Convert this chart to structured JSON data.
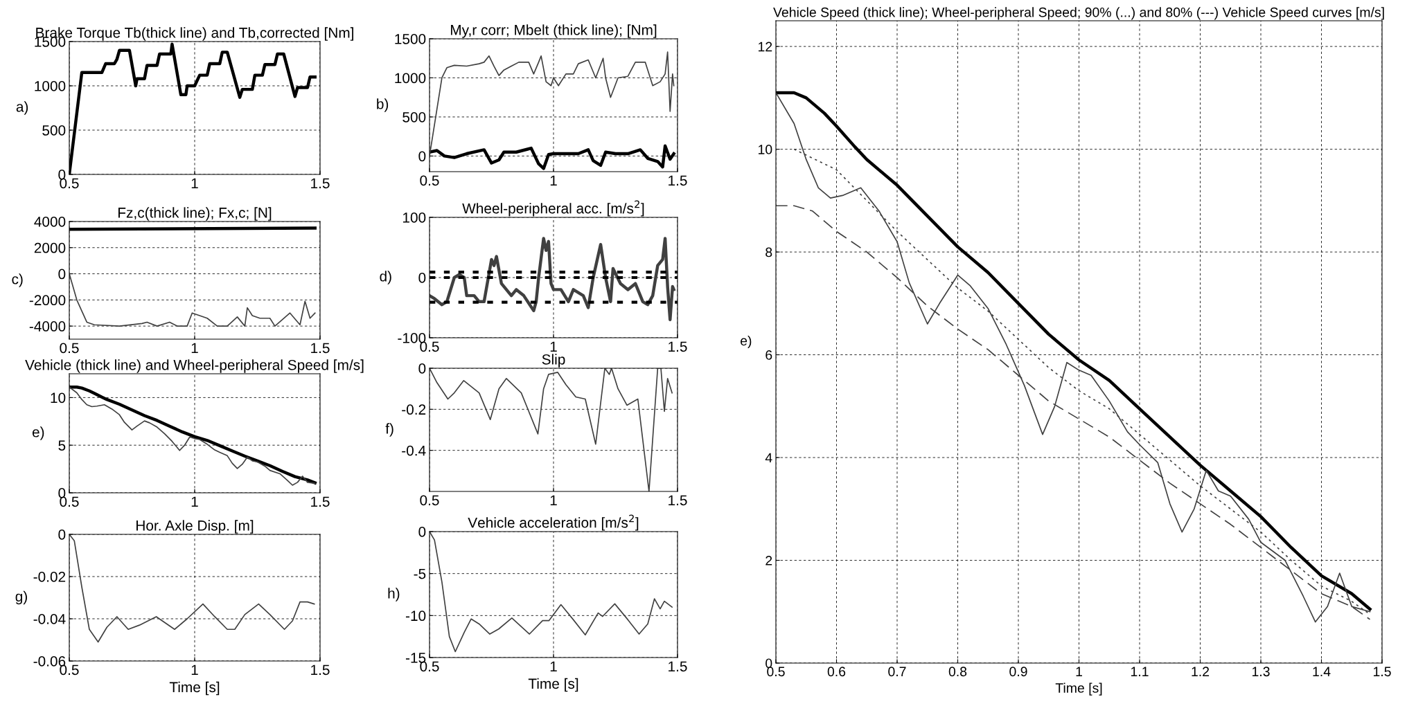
{
  "chart_data": [
    {
      "type": "line",
      "title": "Brake Torque Tb(thick line) and Tb,corrected [Nm]",
      "ylabel": "a)",
      "xlim": [
        0.5,
        1.5
      ],
      "xticks": [
        0.5,
        1,
        1.5
      ],
      "ylim": [
        0,
        1500
      ],
      "yticks": [
        0,
        500,
        1000,
        1500
      ],
      "grid": true,
      "series": [
        {
          "color": "#000000",
          "x": [
            0.5,
            0.55,
            0.63,
            0.645,
            0.68,
            0.69,
            0.7,
            0.74,
            0.765,
            0.77,
            0.8,
            0.81,
            0.85,
            0.86,
            0.905,
            0.91,
            0.945,
            0.965,
            0.97,
            1.0,
            1.02,
            1.05,
            1.06,
            1.1,
            1.11,
            1.13,
            1.18,
            1.19,
            1.23,
            1.24,
            1.27,
            1.28,
            1.32,
            1.33,
            1.355,
            1.4,
            1.41,
            1.45,
            1.46,
            1.48
          ],
          "values": [
            0,
            1150,
            1150,
            1250,
            1250,
            1300,
            1400,
            1400,
            1000,
            1080,
            1080,
            1230,
            1230,
            1360,
            1360,
            1470,
            900,
            900,
            1000,
            1000,
            1120,
            1120,
            1250,
            1250,
            1380,
            1380,
            870,
            960,
            960,
            1120,
            1120,
            1240,
            1240,
            1360,
            1360,
            880,
            980,
            980,
            1100,
            1100
          ]
        }
      ]
    },
    {
      "type": "line",
      "title": "My,r corr; Mbelt (thick line); [Nm]",
      "ylabel": "b)",
      "xlim": [
        0.5,
        1.5
      ],
      "xticks": [
        0.5,
        1,
        1.5
      ],
      "ylim": [
        -200,
        1500
      ],
      "yticks": [
        0,
        500,
        1000,
        1500
      ],
      "grid": true,
      "series": [
        {
          "color": "#000000",
          "x": [
            0.5,
            0.53,
            0.56,
            0.6,
            0.65,
            0.72,
            0.75,
            0.78,
            0.8,
            0.85,
            0.91,
            0.94,
            0.96,
            0.98,
            1.0,
            1.05,
            1.1,
            1.14,
            1.16,
            1.19,
            1.21,
            1.25,
            1.3,
            1.35,
            1.38,
            1.42,
            1.44,
            1.45,
            1.47,
            1.485
          ],
          "values": [
            50,
            70,
            0,
            -20,
            30,
            80,
            -90,
            -50,
            50,
            50,
            100,
            -100,
            -160,
            20,
            30,
            30,
            30,
            80,
            -60,
            -120,
            50,
            30,
            30,
            80,
            -30,
            -70,
            -140,
            130,
            -40,
            30
          ]
        },
        {
          "color": "#404040",
          "x": [
            0.5,
            0.55,
            0.57,
            0.6,
            0.65,
            0.7,
            0.72,
            0.74,
            0.76,
            0.78,
            0.8,
            0.83,
            0.86,
            0.9,
            0.92,
            0.94,
            0.95,
            0.97,
            0.99,
            1.0,
            1.02,
            1.05,
            1.08,
            1.1,
            1.14,
            1.17,
            1.2,
            1.21,
            1.23,
            1.26,
            1.3,
            1.33,
            1.37,
            1.4,
            1.43,
            1.45,
            1.46,
            1.47,
            1.48,
            1.485
          ],
          "values": [
            0,
            1000,
            1130,
            1160,
            1150,
            1180,
            1200,
            1280,
            1150,
            1030,
            1100,
            1150,
            1200,
            1200,
            1050,
            1200,
            1280,
            950,
            900,
            1000,
            900,
            1050,
            1050,
            1180,
            1230,
            1000,
            1250,
            1000,
            750,
            1000,
            1020,
            1200,
            1200,
            900,
            950,
            1050,
            1330,
            570,
            1050,
            900
          ]
        }
      ]
    },
    {
      "type": "line",
      "title": "Fz,c(thick line); Fx,c; [N]",
      "ylabel": "c)",
      "xlim": [
        0.5,
        1.5
      ],
      "xticks": [
        0.5,
        1,
        1.5
      ],
      "ylim": [
        -5000,
        4000
      ],
      "yticks": [
        -4000,
        -2000,
        0,
        2000,
        4000
      ],
      "grid": true,
      "series": [
        {
          "color": "#000000",
          "x": [
            0.5,
            1.48
          ],
          "values": [
            3400,
            3500
          ]
        },
        {
          "color": "#404040",
          "x": [
            0.5,
            0.53,
            0.57,
            0.6,
            0.7,
            0.79,
            0.81,
            0.85,
            0.9,
            0.93,
            0.97,
            0.99,
            1.02,
            1.05,
            1.09,
            1.13,
            1.17,
            1.2,
            1.21,
            1.23,
            1.26,
            1.3,
            1.32,
            1.38,
            1.42,
            1.44,
            1.46,
            1.48
          ],
          "values": [
            0,
            -2000,
            -3700,
            -3900,
            -4000,
            -3800,
            -3700,
            -4000,
            -3700,
            -4000,
            -4000,
            -3000,
            -3200,
            -3400,
            -4000,
            -4000,
            -3300,
            -4000,
            -2600,
            -3200,
            -3400,
            -3400,
            -4000,
            -3000,
            -3900,
            -2100,
            -3400,
            -3000
          ]
        }
      ]
    },
    {
      "type": "line",
      "title": "Wheel-peripheral acc. [m/s$^{2}$]",
      "ylabel": "d)",
      "xlim": [
        0.5,
        1.5
      ],
      "xticks": [
        0.5,
        1,
        1.5
      ],
      "ylim": [
        -100,
        100
      ],
      "yticks": [
        -100,
        0,
        100
      ],
      "grid": true,
      "ref_lines": [
        {
          "axis": "y",
          "value": 9,
          "color": "#000000",
          "line_style": "dotted"
        },
        {
          "axis": "y",
          "value": 0,
          "color": "#000000",
          "line_style": "dotted"
        },
        {
          "axis": "y",
          "value": -41,
          "color": "#000000",
          "line_style": "dotted"
        }
      ],
      "series": [
        {
          "color": "#404040",
          "x": [
            0.5,
            0.52,
            0.55,
            0.57,
            0.6,
            0.62,
            0.64,
            0.65,
            0.68,
            0.7,
            0.72,
            0.75,
            0.76,
            0.77,
            0.79,
            0.81,
            0.83,
            0.85,
            0.88,
            0.92,
            0.93,
            0.94,
            0.96,
            0.97,
            0.98,
            0.99,
            1.0,
            1.03,
            1.06,
            1.08,
            1.12,
            1.14,
            1.16,
            1.19,
            1.21,
            1.23,
            1.24,
            1.27,
            1.3,
            1.33,
            1.36,
            1.38,
            1.4,
            1.42,
            1.44,
            1.45,
            1.46,
            1.47,
            1.48,
            1.485
          ],
          "values": [
            -30,
            -35,
            -45,
            -40,
            0,
            5,
            0,
            -30,
            -30,
            -40,
            -40,
            30,
            20,
            35,
            -10,
            -20,
            -30,
            -20,
            -30,
            -55,
            -40,
            0,
            65,
            45,
            60,
            -10,
            -20,
            -20,
            -40,
            -20,
            -30,
            -50,
            0,
            55,
            0,
            -40,
            15,
            -10,
            -20,
            -10,
            -40,
            -45,
            -30,
            20,
            30,
            65,
            -15,
            -70,
            -15,
            -20
          ]
        }
      ]
    },
    {
      "type": "line",
      "title": "Vehicle (thick line) and Wheel-peripheral Speed [m/s]",
      "ylabel": "e)",
      "xlim": [
        0.5,
        1.5
      ],
      "xticks": [
        0.5,
        1,
        1.5
      ],
      "ylim": [
        0,
        12.5
      ],
      "yticks": [
        0,
        5,
        10
      ],
      "grid": true,
      "series": [
        {
          "color": "#000000",
          "x": [
            0.5,
            0.53,
            0.55,
            0.58,
            0.6,
            0.63,
            0.65,
            0.7,
            0.75,
            0.8,
            0.85,
            0.9,
            0.95,
            1.0,
            1.05,
            1.1,
            1.15,
            1.2,
            1.25,
            1.3,
            1.35,
            1.4,
            1.45,
            1.48
          ],
          "values": [
            11.1,
            11.1,
            11.0,
            10.7,
            10.45,
            10.05,
            9.8,
            9.3,
            8.7,
            8.1,
            7.6,
            7.0,
            6.4,
            5.9,
            5.5,
            4.95,
            4.4,
            3.85,
            3.35,
            2.85,
            2.25,
            1.7,
            1.35,
            1.05
          ]
        },
        {
          "color": "#404040",
          "x": [
            0.5,
            0.53,
            0.55,
            0.57,
            0.59,
            0.61,
            0.64,
            0.67,
            0.7,
            0.72,
            0.75,
            0.77,
            0.8,
            0.82,
            0.85,
            0.88,
            0.91,
            0.94,
            0.96,
            0.98,
            1.0,
            1.02,
            1.05,
            1.08,
            1.1,
            1.13,
            1.15,
            1.17,
            1.19,
            1.21,
            1.23,
            1.25,
            1.28,
            1.3,
            1.34,
            1.37,
            1.39,
            1.41,
            1.43,
            1.45,
            1.48
          ],
          "values": [
            11.1,
            10.5,
            9.8,
            9.25,
            9.05,
            9.1,
            9.25,
            8.8,
            8.2,
            7.4,
            6.6,
            7.0,
            7.55,
            7.35,
            6.9,
            6.2,
            5.4,
            4.45,
            5.0,
            5.85,
            5.7,
            5.6,
            5.1,
            4.5,
            4.25,
            3.9,
            3.1,
            2.55,
            3.0,
            3.75,
            3.35,
            3.25,
            2.8,
            2.35,
            2.0,
            1.3,
            0.8,
            1.1,
            1.75,
            1.1,
            1.0
          ]
        }
      ]
    },
    {
      "type": "line",
      "title": "Slip",
      "ylabel": "f)",
      "xlim": [
        0.5,
        1.5
      ],
      "xticks": [
        0.5,
        1,
        1.5
      ],
      "ylim": [
        -0.6,
        0
      ],
      "yticks": [
        -0.4,
        -0.2,
        0
      ],
      "grid": true,
      "color": "#404040",
      "x": [
        0.5,
        0.53,
        0.574,
        0.6,
        0.638,
        0.7,
        0.745,
        0.78,
        0.81,
        0.87,
        0.937,
        0.96,
        0.98,
        1.017,
        1.05,
        1.09,
        1.128,
        1.17,
        1.207,
        1.225,
        1.234,
        1.26,
        1.296,
        1.34,
        1.36,
        1.385,
        1.42,
        1.433,
        1.447,
        1.46,
        1.478
      ],
      "values": [
        0,
        -0.07,
        -0.15,
        -0.12,
        -0.06,
        -0.12,
        -0.25,
        -0.1,
        -0.05,
        -0.12,
        -0.32,
        -0.1,
        -0.03,
        -0.02,
        -0.08,
        -0.14,
        -0.15,
        -0.37,
        0,
        -0.03,
        0,
        -0.1,
        -0.18,
        -0.15,
        -0.35,
        -0.6,
        0,
        0,
        -0.21,
        -0.05,
        -0.12
      ]
    },
    {
      "type": "line",
      "title": "Hor. Axle Disp. [m]",
      "ylabel": "g)",
      "xlabel": "Time [s]",
      "xlim": [
        0.5,
        1.5
      ],
      "xticks": [
        0.5,
        1,
        1.5
      ],
      "ylim": [
        -0.06,
        0
      ],
      "yticks": [
        -0.06,
        -0.04,
        -0.02,
        0
      ],
      "grid": true,
      "color": "#404040",
      "x": [
        0.5,
        0.52,
        0.55,
        0.58,
        0.615,
        0.65,
        0.69,
        0.735,
        0.78,
        0.847,
        0.92,
        0.97,
        1.033,
        1.08,
        1.13,
        1.16,
        1.2,
        1.255,
        1.3,
        1.358,
        1.39,
        1.42,
        1.45,
        1.477
      ],
      "values": [
        0,
        -0.003,
        -0.025,
        -0.045,
        -0.051,
        -0.044,
        -0.039,
        -0.045,
        -0.043,
        -0.039,
        -0.045,
        -0.04,
        -0.033,
        -0.039,
        -0.045,
        -0.045,
        -0.038,
        -0.033,
        -0.038,
        -0.045,
        -0.041,
        -0.032,
        -0.032,
        -0.033
      ]
    },
    {
      "type": "line",
      "title": "Vehicle acceleration [m/s$^{2}$]",
      "ylabel": "h)",
      "xlabel": "Time [s]",
      "xlim": [
        0.5,
        1.5
      ],
      "xticks": [
        0.5,
        1,
        1.5
      ],
      "ylim": [
        -15,
        0
      ],
      "yticks": [
        -15,
        -10,
        -5,
        0
      ],
      "grid": true,
      "color": "#404040",
      "x": [
        0.5,
        0.52,
        0.55,
        0.58,
        0.604,
        0.64,
        0.668,
        0.7,
        0.743,
        0.779,
        0.832,
        0.903,
        0.956,
        0.982,
        1.03,
        1.08,
        1.128,
        1.18,
        1.198,
        1.247,
        1.3,
        1.345,
        1.38,
        1.407,
        1.43,
        1.447,
        1.478
      ],
      "values": [
        0,
        -1,
        -6,
        -12.5,
        -14.3,
        -12,
        -10.4,
        -11,
        -12.2,
        -11.6,
        -10.3,
        -12.2,
        -10.6,
        -10.6,
        -8.7,
        -10.5,
        -12.3,
        -9.7,
        -10.1,
        -8.6,
        -10.5,
        -12.2,
        -11,
        -8,
        -9.2,
        -8.3,
        -9
      ]
    },
    {
      "type": "line",
      "title": "Vehicle Speed (thick line); Wheel-peripheral Speed; 90% (...) and 80% (---) Vehicle Speed curves [m/s]",
      "ylabel": "e)",
      "xlabel": "Time [s]",
      "xlim": [
        0.5,
        1.5
      ],
      "xticks": [
        0.5,
        0.6,
        0.7,
        0.8,
        0.9,
        1,
        1.1,
        1.2,
        1.3,
        1.4,
        1.5
      ],
      "ylim": [
        0,
        12.5
      ],
      "yticks": [
        0,
        2,
        4,
        6,
        8,
        10,
        12
      ],
      "grid": true,
      "series": [
        {
          "color": "#000000",
          "x": [
            0.5,
            0.53,
            0.55,
            0.58,
            0.6,
            0.63,
            0.65,
            0.7,
            0.75,
            0.8,
            0.85,
            0.9,
            0.95,
            1.0,
            1.05,
            1.1,
            1.15,
            1.2,
            1.25,
            1.3,
            1.35,
            1.4,
            1.45,
            1.48
          ],
          "values": [
            11.1,
            11.1,
            11.0,
            10.7,
            10.45,
            10.05,
            9.8,
            9.3,
            8.7,
            8.1,
            7.6,
            7.0,
            6.4,
            5.9,
            5.5,
            4.95,
            4.4,
            3.85,
            3.35,
            2.85,
            2.25,
            1.7,
            1.35,
            1.05
          ]
        },
        {
          "color": "#404040",
          "x": [
            0.5,
            0.53,
            0.55,
            0.57,
            0.59,
            0.61,
            0.64,
            0.67,
            0.7,
            0.72,
            0.75,
            0.77,
            0.8,
            0.82,
            0.85,
            0.88,
            0.91,
            0.94,
            0.96,
            0.98,
            1.0,
            1.02,
            1.05,
            1.08,
            1.1,
            1.13,
            1.15,
            1.17,
            1.19,
            1.21,
            1.23,
            1.25,
            1.28,
            1.3,
            1.34,
            1.37,
            1.39,
            1.41,
            1.43,
            1.45,
            1.48
          ],
          "values": [
            11.1,
            10.5,
            9.8,
            9.25,
            9.05,
            9.1,
            9.25,
            8.8,
            8.2,
            7.4,
            6.6,
            7.0,
            7.55,
            7.35,
            6.9,
            6.2,
            5.4,
            4.45,
            5.0,
            5.85,
            5.7,
            5.6,
            5.1,
            4.5,
            4.25,
            3.9,
            3.1,
            2.55,
            3.0,
            3.75,
            3.35,
            3.25,
            2.8,
            2.35,
            2.0,
            1.3,
            0.8,
            1.1,
            1.75,
            1.1,
            1.0
          ]
        },
        {
          "color": "#404040",
          "line_style": "dotted",
          "x": [
            0.53,
            0.6,
            0.65,
            0.7,
            0.75,
            0.8,
            0.85,
            0.9,
            0.95,
            1.0,
            1.05,
            1.1,
            1.15,
            1.2,
            1.25,
            1.3,
            1.35,
            1.4,
            1.45,
            1.48
          ],
          "values": [
            10.0,
            9.6,
            9.0,
            8.4,
            7.85,
            7.3,
            6.85,
            6.3,
            5.75,
            5.3,
            4.95,
            4.45,
            3.95,
            3.45,
            3.0,
            2.55,
            2.0,
            1.5,
            1.2,
            0.95
          ]
        },
        {
          "color": "#404040",
          "line_style": "dashed",
          "x": [
            0.5,
            0.53,
            0.56,
            0.6,
            0.65,
            0.7,
            0.75,
            0.8,
            0.85,
            0.9,
            0.95,
            1.0,
            1.05,
            1.1,
            1.15,
            1.2,
            1.25,
            1.3,
            1.35,
            1.4,
            1.45,
            1.48
          ],
          "values": [
            8.9,
            8.9,
            8.8,
            8.4,
            8.0,
            7.5,
            6.95,
            6.5,
            6.1,
            5.6,
            5.1,
            4.75,
            4.4,
            3.95,
            3.5,
            3.1,
            2.7,
            2.25,
            1.8,
            1.35,
            1.1,
            0.85
          ]
        }
      ]
    }
  ]
}
